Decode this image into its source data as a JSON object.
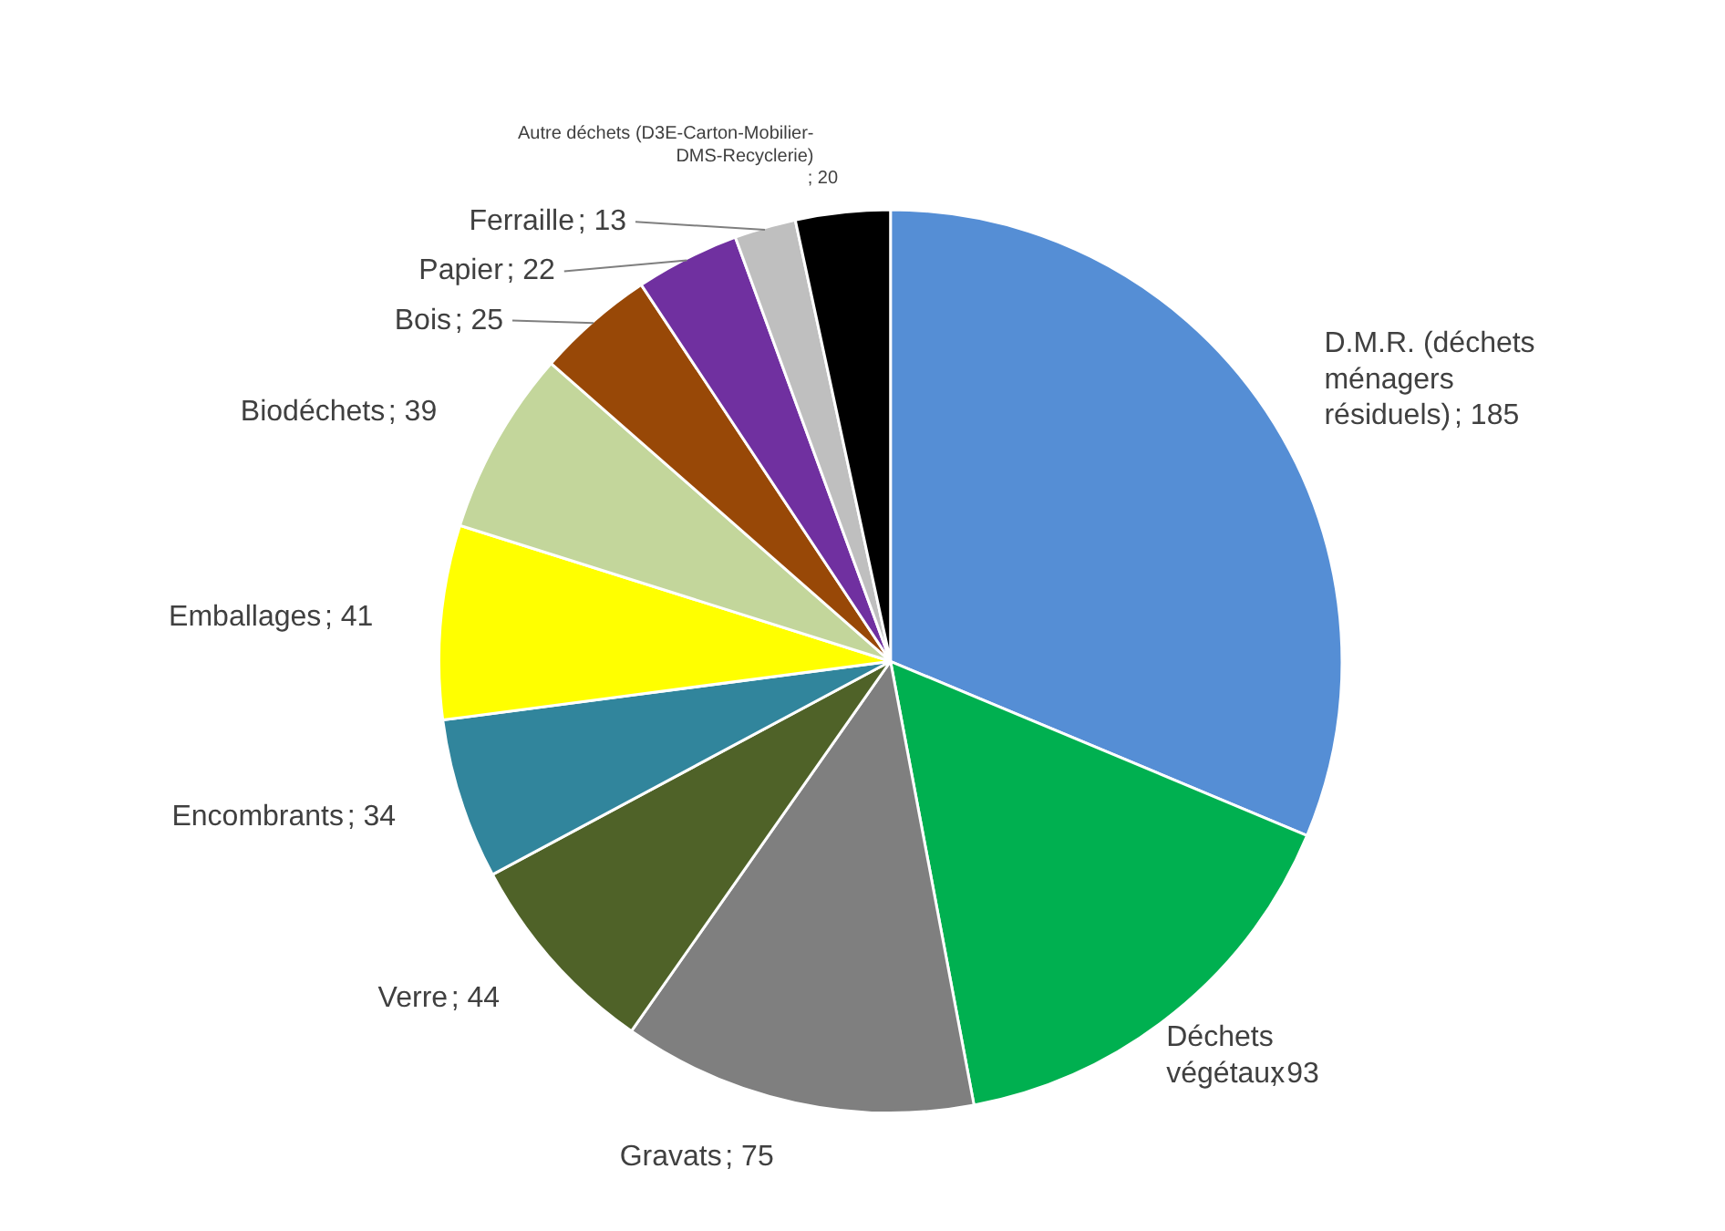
{
  "chart_data": {
    "type": "pie",
    "value_labels": [
      "; 185",
      "; 93",
      "; 75",
      "; 44",
      "; 34",
      "; 41",
      "; 39",
      "; 25",
      "; 22",
      "; 13",
      "; 20"
    ],
    "categories": [
      "D.M.R. (déchets ménagers résiduels)",
      "Déchets végétaux",
      "Gravats",
      "Verre",
      "Encombrants",
      "Emballages",
      "Biodéchets",
      "Bois",
      "Papier",
      "Ferraille",
      "Autre déchets (D3E-Carton-Mobilier-DMS-Recyclerie)"
    ],
    "values": [
      185,
      93,
      75,
      44,
      34,
      41,
      39,
      25,
      22,
      13,
      20
    ],
    "colors": [
      "#558ed5",
      "#00b050",
      "#7f7f7f",
      "#4f6228",
      "#31859c",
      "#ffff00",
      "#c3d69b",
      "#984807",
      "#7030a0",
      "#bfbfbf",
      "#000000"
    ]
  }
}
